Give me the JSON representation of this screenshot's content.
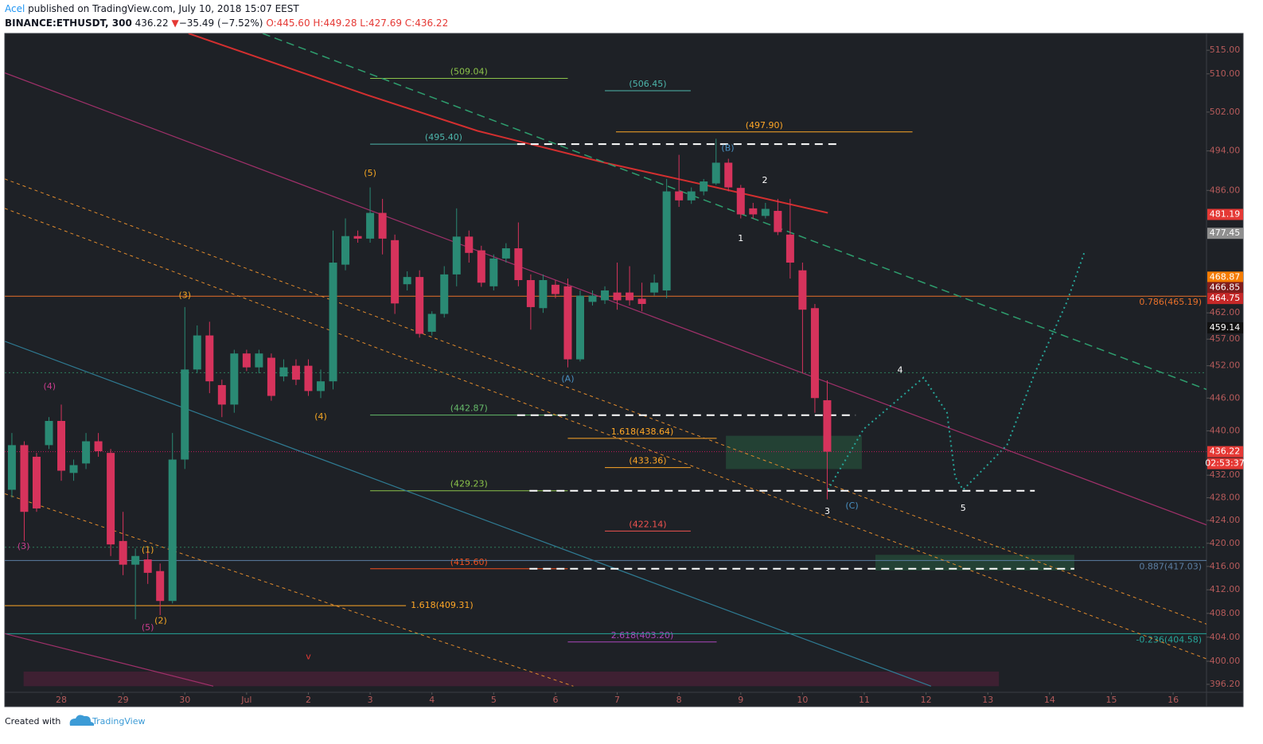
{
  "header": {
    "author": "Acel",
    "published": "published on TradingView.com, July 10, 2018 15:07 EEST",
    "symbol": "BINANCE:ETHUSDT, 300",
    "price": "436.22",
    "arrow": "▼",
    "change": "−35.49 (−7.52%)",
    "ohlc": "O:445.60 H:449.28 L:427.69 C:436.22"
  },
  "footer": {
    "created": "Created with",
    "brand": "TradingView"
  },
  "chart_data": {
    "type": "candlestick",
    "log_scale": true,
    "up_color": "#2a8a74",
    "down_color": "#d6335c",
    "xlim": [
      27.085,
      46.54
    ],
    "xticks": [
      28,
      29,
      30,
      {
        "value": 31,
        "label": "Jul"
      },
      {
        "value": 32,
        "label": "2"
      },
      {
        "value": 33,
        "label": "3"
      },
      {
        "value": 34,
        "label": "4"
      },
      {
        "value": 35,
        "label": "5"
      },
      {
        "value": 36,
        "label": "6"
      },
      {
        "value": 37,
        "label": "7"
      },
      {
        "value": 38,
        "label": "8"
      },
      {
        "value": 39,
        "label": "9"
      },
      {
        "value": 40,
        "label": "10"
      },
      {
        "value": 41,
        "label": "11"
      },
      {
        "value": 42,
        "label": "12"
      },
      {
        "value": 43,
        "label": "13"
      },
      {
        "value": 44,
        "label": "14"
      },
      {
        "value": 45,
        "label": "15"
      },
      {
        "value": 46,
        "label": "16"
      }
    ],
    "ylim": [
      394.9,
      518.6
    ],
    "yticks": [
      {
        "value": 515,
        "label": "515.00"
      },
      {
        "value": 510,
        "label": "510.00"
      },
      {
        "value": 502,
        "label": "502.00"
      },
      {
        "value": 494,
        "label": "494.00"
      },
      {
        "value": 486,
        "label": "486.00"
      },
      {
        "value": 462,
        "label": "462.00"
      },
      {
        "value": 457,
        "label": "457.00"
      },
      {
        "value": 452,
        "label": "452.00"
      },
      {
        "value": 446,
        "label": "446.00"
      },
      {
        "value": 440,
        "label": "440.00"
      },
      {
        "value": 432,
        "label": "432.00"
      },
      {
        "value": 428,
        "label": "428.00"
      },
      {
        "value": 424,
        "label": "424.00"
      },
      {
        "value": 420,
        "label": "420.00"
      },
      {
        "value": 416,
        "label": "416.00"
      },
      {
        "value": 412,
        "label": "412.00"
      },
      {
        "value": 408,
        "label": "408.00"
      },
      {
        "value": 404,
        "label": "404.00"
      },
      {
        "value": 400,
        "label": "400.00"
      },
      {
        "value": 396.2,
        "label": "396.20"
      }
    ],
    "x": [
      27.2,
      27.4,
      27.6,
      27.8,
      28,
      28.2,
      28.4,
      28.6,
      28.8,
      29,
      29.2,
      29.4,
      29.6,
      29.8,
      30,
      30.2,
      30.4,
      30.6,
      30.8,
      31,
      31.2,
      31.4,
      31.6,
      31.8,
      32,
      32.2,
      32.4,
      32.6,
      32.8,
      33,
      33.2,
      33.4,
      33.6,
      33.8,
      34,
      34.2,
      34.4,
      34.6,
      34.8,
      35,
      35.2,
      35.4,
      35.6,
      35.8,
      36,
      36.2,
      36.4,
      36.6,
      36.8,
      37,
      37.2,
      37.4,
      37.6,
      37.8,
      38,
      38.2,
      38.4,
      38.6,
      38.8,
      39,
      39.2,
      39.4,
      39.6,
      39.8,
      40,
      40.2,
      40.4
    ],
    "open": [
      429.4,
      437.4,
      435.3,
      437.4,
      441.8,
      432.4,
      434.1,
      438.1,
      436.0,
      420.4,
      416.3,
      417.2,
      415.2,
      410.1,
      434.8,
      451.3,
      457.7,
      448.4,
      444.8,
      454.3,
      451.7,
      453.5,
      450.0,
      452.0,
      452.0,
      447.3,
      449.1,
      471.3,
      476.9,
      476.4,
      481.5,
      476.1,
      467.5,
      468.9,
      458.4,
      461.8,
      469.4,
      476.8,
      474.1,
      467.1,
      472.5,
      474.5,
      468.3,
      462.9,
      467.4,
      467.1,
      453.2,
      464.1,
      464.4,
      465.9,
      465.9,
      464.7,
      465.9,
      466.3,
      485.8,
      484.0,
      485.8,
      487.4,
      491.6,
      486.5,
      482.4,
      480.9,
      481.9,
      477.2,
      470.2,
      462.9,
      445.6
    ],
    "high": [
      439.6,
      438.1,
      436.0,
      442.5,
      444.8,
      434.8,
      439.6,
      439.6,
      436.7,
      425.5,
      419.1,
      419.1,
      416.5,
      439.6,
      463.1,
      459.6,
      460.3,
      449.4,
      455.0,
      455.0,
      455.0,
      454.3,
      453.2,
      453.2,
      453.2,
      451.3,
      478.0,
      480.4,
      478.0,
      486.6,
      484.3,
      477.2,
      470.0,
      470.2,
      462.3,
      471.0,
      482.4,
      478.0,
      475.0,
      473.3,
      475.5,
      479.6,
      469.4,
      469.4,
      468.3,
      468.6,
      466.3,
      466.3,
      467.1,
      471.7,
      471.0,
      467.8,
      469.4,
      488.3,
      493.2,
      486.6,
      488.3,
      496.5,
      492.4,
      487.1,
      483.5,
      483.5,
      484.3,
      484.3,
      471.7,
      463.7,
      449.28
    ],
    "low": [
      428.0,
      420.4,
      425.5,
      436.7,
      431.0,
      431.0,
      433.1,
      435.3,
      417.8,
      414.5,
      407.0,
      413.0,
      407.7,
      409.7,
      433.1,
      450.6,
      446.9,
      442.5,
      443.3,
      451.0,
      450.6,
      445.5,
      449.1,
      448.4,
      446.4,
      446.0,
      447.6,
      470.2,
      475.6,
      475.6,
      473.3,
      461.8,
      466.3,
      457.3,
      457.7,
      461.1,
      467.1,
      471.7,
      467.0,
      466.3,
      471.7,
      467.1,
      458.8,
      462.0,
      464.8,
      451.7,
      452.8,
      463.4,
      463.7,
      462.6,
      463.4,
      462.3,
      465.3,
      464.8,
      482.7,
      483.3,
      485.0,
      487.1,
      485.8,
      480.4,
      480.4,
      480.4,
      477.1,
      468.6,
      450.6,
      443.3,
      427.69
    ],
    "close": [
      437.4,
      425.5,
      426.1,
      441.8,
      432.8,
      433.8,
      438.1,
      436.3,
      419.8,
      416.3,
      417.8,
      414.9,
      410.1,
      434.8,
      451.3,
      457.7,
      449.1,
      444.8,
      454.3,
      451.7,
      454.3,
      446.4,
      451.7,
      449.4,
      447.3,
      449.1,
      471.7,
      476.9,
      476.4,
      481.5,
      476.4,
      463.8,
      468.9,
      458.0,
      461.8,
      469.4,
      476.8,
      473.6,
      467.8,
      472.5,
      474.5,
      468.3,
      463.1,
      468.3,
      465.6,
      453.2,
      465.3,
      465.3,
      466.3,
      464.4,
      464.4,
      463.7,
      467.8,
      485.8,
      484.0,
      485.8,
      487.8,
      491.6,
      486.6,
      481.2,
      481.2,
      482.3,
      477.7,
      471.7,
      462.6,
      446.0,
      436.22
    ],
    "boxes": [
      {
        "x": [
          38.76,
          40.96
        ],
        "y": [
          439.1,
          433.1
        ],
        "color": "#2e7d4f"
      },
      {
        "x": [
          41.18,
          44.4
        ],
        "y": [
          418.0,
          415.3
        ],
        "color": "#2e7d4f"
      },
      {
        "x": [
          27.39,
          43.18
        ],
        "y": [
          398.3,
          395.9
        ],
        "color": "#7b1f4a"
      }
    ],
    "trendlines": [
      {
        "x": [
          30.06,
          32.94,
          34.74,
          36.8,
          38.6,
          40.41
        ],
        "y": [
          518.6,
          505.6,
          498.1,
          491.6,
          486.6,
          481.5
        ],
        "color": "#d32f2f",
        "width": 2
      },
      {
        "x": [
          27.085,
          46.54
        ],
        "y": [
          510.2,
          423.2
        ],
        "color": "#a0306a",
        "width": 1.2
      },
      {
        "x": [
          27.085,
          30.46
        ],
        "y": [
          404.6,
          395.9
        ],
        "color": "#a0306a",
        "width": 1.2
      },
      {
        "x": [
          31.26,
          46.54
        ],
        "y": [
          518.6,
          447.6
        ],
        "color": "#2e9e6e",
        "width": 1.5,
        "dash": "10 6"
      },
      {
        "x": [
          27.085,
          42.08
        ],
        "y": [
          456.6,
          395.9
        ],
        "color": "#2f7b93",
        "width": 1.2
      },
      {
        "x": [
          27.085,
          46.54
        ],
        "y": [
          488.3,
          406.2
        ],
        "color": "#e08a2c",
        "width": 1,
        "dash": "4 4"
      },
      {
        "x": [
          27.085,
          46.54
        ],
        "y": [
          482.4,
          400.4
        ],
        "color": "#e08a2c",
        "width": 1,
        "dash": "4 4"
      },
      {
        "x": [
          27.085,
          36.29
        ],
        "y": [
          428.7,
          395.9
        ],
        "color": "#e08a2c",
        "width": 1,
        "dash": "4 4"
      },
      {
        "x": [
          35.38,
          40.56
        ],
        "y": [
          495.4,
          495.4
        ],
        "color": "#ffffff",
        "width": 2,
        "dash": "10 7"
      },
      {
        "x": [
          35.38,
          40.86
        ],
        "y": [
          442.87,
          442.87
        ],
        "color": "#ffffff",
        "width": 2,
        "dash": "10 7"
      },
      {
        "x": [
          35.58,
          43.76
        ],
        "y": [
          429.23,
          429.23
        ],
        "color": "#ffffff",
        "width": 2,
        "dash": "10 7"
      },
      {
        "x": [
          35.58,
          44.4
        ],
        "y": [
          415.6,
          415.6
        ],
        "color": "#ffffff",
        "width": 2,
        "dash": "10 7"
      },
      {
        "x": [
          40.41,
          40.99,
          41.96,
          42.34,
          42.47,
          42.6,
          43.31,
          43.76,
          44.28,
          44.56
        ],
        "y": [
          429.4,
          440.3,
          449.8,
          443.3,
          431.7,
          429.4,
          437.4,
          450.6,
          464.1,
          473.6
        ],
        "color": "#26a69a",
        "width": 2,
        "dash": "2 4"
      },
      {
        "x": [
          27.085,
          46.54
        ],
        "y": [
          450.7,
          450.7
        ],
        "color": "#2e7d5b",
        "width": 1,
        "dash": "2 3"
      },
      {
        "x": [
          27.085,
          46.54
        ],
        "y": [
          419.3,
          419.3
        ],
        "color": "#2e7d5b",
        "width": 1,
        "dash": "2 3"
      },
      {
        "x": [
          27.085,
          46.54
        ],
        "y": [
          436.22,
          436.22
        ],
        "color": "#c2185b",
        "width": 1,
        "dash": "1 2"
      }
    ],
    "levels": [
      {
        "label": "(509.04)",
        "value": 509.04,
        "x": [
          33.0,
          36.2
        ],
        "color": "#8bc34a",
        "label_at": "center"
      },
      {
        "label": "(506.45)",
        "value": 506.45,
        "x": [
          36.8,
          38.19
        ],
        "color": "#4db6ac",
        "label_at": "center"
      },
      {
        "label": "(497.90)",
        "value": 497.9,
        "x": [
          36.98,
          41.78
        ],
        "color": "#ffa726",
        "label_at": "center"
      },
      {
        "label": "(495.40)",
        "value": 495.4,
        "x": [
          33.0,
          35.38
        ],
        "color": "#4db6ac",
        "label_at": "center"
      },
      {
        "label": "(442.87)",
        "value": 442.87,
        "x": [
          33.0,
          36.2
        ],
        "color": "#66bb6a",
        "label_at": "center"
      },
      {
        "label": "1.618(438.64)",
        "value": 438.64,
        "x": [
          36.2,
          38.61
        ],
        "color": "#ffa726",
        "label_at": "center"
      },
      {
        "label": "(433.36)",
        "value": 433.36,
        "x": [
          36.8,
          38.19
        ],
        "color": "#ffa726",
        "label_at": "center"
      },
      {
        "label": "(429.23)",
        "value": 429.23,
        "x": [
          33.0,
          36.2
        ],
        "color": "#8bc34a",
        "label_at": "center"
      },
      {
        "label": "(422.14)",
        "value": 422.14,
        "x": [
          36.8,
          38.19
        ],
        "color": "#ef5350",
        "label_at": "center"
      },
      {
        "label": "(415.60)",
        "value": 415.6,
        "x": [
          33.0,
          36.2
        ],
        "color": "#f4511e",
        "label_at": "center"
      },
      {
        "label": "1.618(409.31)",
        "value": 409.31,
        "x": [
          27.085,
          33.58
        ],
        "color": "#ffa726",
        "label_at": "after"
      },
      {
        "label": "2.618(403.20)",
        "value": 403.2,
        "x": [
          36.2,
          38.61
        ],
        "color": "#ab47bc",
        "label_at": "center"
      },
      {
        "label": "0.786(465.19)",
        "value": 465.19,
        "x": [
          27.085,
          46.54
        ],
        "color": "#e8702a",
        "label_at": "end"
      },
      {
        "label": "0.887(417.03)",
        "value": 417.03,
        "x": [
          27.085,
          46.54
        ],
        "color": "#5c7fa3",
        "label_at": "end"
      },
      {
        "label": "-0.236(404.58)",
        "value": 404.58,
        "x": [
          27.085,
          46.54
        ],
        "color": "#26a69a",
        "label_at": "end"
      }
    ],
    "wave_labels": [
      {
        "text": "(5)",
        "x": 33.0,
        "y": 489.4,
        "color": "#f5a623"
      },
      {
        "text": "(3)",
        "x": 30.0,
        "y": 465.3,
        "color": "#f5a623"
      },
      {
        "text": "(4)",
        "x": 32.2,
        "y": 442.5,
        "color": "#f5a623"
      },
      {
        "text": "(1)",
        "x": 29.4,
        "y": 418.8,
        "color": "#f5a623"
      },
      {
        "text": "(2)",
        "x": 29.61,
        "y": 406.7,
        "color": "#f5a623"
      },
      {
        "text": "(4)",
        "x": 27.81,
        "y": 448.1,
        "color": "#c83c8c"
      },
      {
        "text": "(3)",
        "x": 27.39,
        "y": 419.4,
        "color": "#c83c8c"
      },
      {
        "text": "(5)",
        "x": 29.4,
        "y": 405.6,
        "color": "#c83c8c"
      },
      {
        "text": "(A)",
        "x": 36.2,
        "y": 449.5,
        "color": "#4a90c2"
      },
      {
        "text": "(B)",
        "x": 38.79,
        "y": 494.5,
        "color": "#4a90c2"
      },
      {
        "text": "(C)",
        "x": 40.8,
        "y": 426.5,
        "color": "#4a90c2"
      },
      {
        "text": "1",
        "x": 39.0,
        "y": 476.4,
        "color": "#ffffff"
      },
      {
        "text": "2",
        "x": 39.39,
        "y": 488.0,
        "color": "#ffffff"
      },
      {
        "text": "3",
        "x": 40.4,
        "y": 425.5,
        "color": "#ffffff"
      },
      {
        "text": "4",
        "x": 41.58,
        "y": 451.1,
        "color": "#ffffff"
      },
      {
        "text": "5",
        "x": 42.6,
        "y": 426.1,
        "color": "#ffffff"
      },
      {
        "text": "v",
        "x": 32.0,
        "y": 400.7,
        "color": "#e53935"
      }
    ],
    "price_labels": [
      {
        "value": 481.19,
        "label": "481.19",
        "color": "#e53935"
      },
      {
        "value": 477.45,
        "label": "477.45",
        "color": "#8f8f8f"
      },
      {
        "value": 468.87,
        "label": "468.87",
        "color": "#f57c00"
      },
      {
        "value": 466.85,
        "label": "466.85",
        "color": "#7f1d1d"
      },
      {
        "value": 464.75,
        "label": "464.75",
        "color": "#c62828"
      },
      {
        "value": 459.14,
        "label": "459.14",
        "color": "#111111"
      },
      {
        "value": 436.22,
        "label": "436.22",
        "color": "#e53935"
      }
    ],
    "countdown": "02:53:37"
  }
}
